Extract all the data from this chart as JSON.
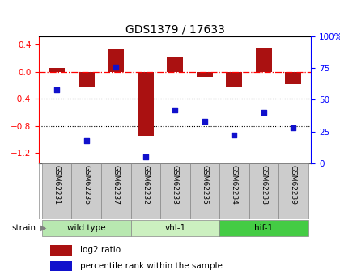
{
  "title": "GDS1379 / 17633",
  "samples": [
    "GSM62231",
    "GSM62236",
    "GSM62237",
    "GSM62232",
    "GSM62233",
    "GSM62235",
    "GSM62234",
    "GSM62238",
    "GSM62239"
  ],
  "log2_ratio": [
    0.05,
    -0.22,
    0.34,
    -0.95,
    0.21,
    -0.08,
    -0.22,
    0.35,
    -0.19
  ],
  "percentile_rank": [
    58,
    18,
    76,
    5,
    42,
    33,
    22,
    40,
    28
  ],
  "group_defs": [
    {
      "label": "wild type",
      "start": 0,
      "end": 2,
      "color": "#b8e8b0"
    },
    {
      "label": "vhl-1",
      "start": 3,
      "end": 5,
      "color": "#ccf0c0"
    },
    {
      "label": "hif-1",
      "start": 6,
      "end": 8,
      "color": "#44cc44"
    }
  ],
  "bar_color": "#aa1111",
  "dot_color": "#1111cc",
  "ylim_left": [
    -1.35,
    0.52
  ],
  "ylim_right": [
    0,
    100
  ],
  "yticks_left": [
    -1.2,
    -0.8,
    -0.4,
    0.0,
    0.4
  ],
  "yticks_right": [
    0,
    25,
    50,
    75,
    100
  ],
  "hline_y": 0.0,
  "dotted_lines": [
    -0.4,
    -0.8
  ],
  "legend_items": [
    {
      "label": "log2 ratio",
      "color": "#aa1111"
    },
    {
      "label": "percentile rank within the sample",
      "color": "#1111cc"
    }
  ],
  "sample_box_color": "#cccccc",
  "figure_bg": "#ffffff"
}
